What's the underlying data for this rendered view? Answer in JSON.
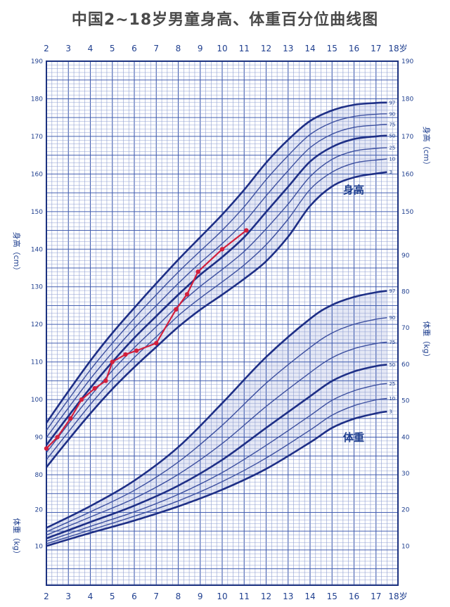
{
  "page": {
    "title": "中国2~18岁男童身高、体重百分位曲线图"
  },
  "chart_data": {
    "type": "line",
    "title": "中国2~18岁男童身高、体重百分位曲线图",
    "x_ticks": [
      "2",
      "3",
      "4",
      "5",
      "6",
      "7",
      "8",
      "9",
      "10",
      "11",
      "12",
      "13",
      "14",
      "15",
      "16",
      "17",
      "18岁"
    ],
    "xlim": [
      2,
      18
    ],
    "height_axis": {
      "label_left": "身高（cm）",
      "label_right": "身高（cm）",
      "range": [
        80,
        190
      ],
      "ticks": [
        80,
        90,
        100,
        110,
        120,
        130,
        140,
        150,
        160,
        170,
        180,
        190
      ],
      "right_ticks": [
        150,
        160,
        170,
        180,
        190
      ],
      "curve_label": "身高",
      "percentiles": [
        {
          "name": "3",
          "values": [
            [
              2,
              82.0
            ],
            [
              3,
              89.3
            ],
            [
              4,
              96.3
            ],
            [
              5,
              102.8
            ],
            [
              6,
              108.6
            ],
            [
              7,
              114.0
            ],
            [
              8,
              119.3
            ],
            [
              9,
              123.9
            ],
            [
              10,
              127.9
            ],
            [
              11,
              132.1
            ],
            [
              12,
              136.8
            ],
            [
              13,
              143.3
            ],
            [
              14,
              151.5
            ],
            [
              15,
              156.7
            ],
            [
              16,
              159.1
            ],
            [
              17,
              160.1
            ],
            [
              17.5,
              160.5
            ]
          ]
        },
        {
          "name": "10",
          "values": [
            [
              2,
              84.0
            ],
            [
              3,
              91.4
            ],
            [
              4,
              98.7
            ],
            [
              5,
              105.3
            ],
            [
              6,
              111.2
            ],
            [
              7,
              116.7
            ],
            [
              8,
              122.3
            ],
            [
              9,
              127.0
            ],
            [
              10,
              131.3
            ],
            [
              11,
              135.8
            ],
            [
              12,
              141.2
            ],
            [
              13,
              148.0
            ],
            [
              14,
              155.9
            ],
            [
              15,
              160.5
            ],
            [
              16,
              162.9
            ],
            [
              17,
              163.7
            ],
            [
              17.5,
              164.0
            ]
          ]
        },
        {
          "name": "25",
          "values": [
            [
              2,
              85.9
            ],
            [
              3,
              93.5
            ],
            [
              4,
              100.9
            ],
            [
              5,
              107.7
            ],
            [
              6,
              113.8
            ],
            [
              7,
              119.4
            ],
            [
              8,
              125.0
            ],
            [
              9,
              130.1
            ],
            [
              10,
              134.6
            ],
            [
              11,
              139.4
            ],
            [
              12,
              145.4
            ],
            [
              13,
              152.0
            ],
            [
              14,
              159.3
            ],
            [
              15,
              163.9
            ],
            [
              16,
              166.1
            ],
            [
              17,
              166.8
            ],
            [
              17.5,
              167.0
            ]
          ]
        },
        {
          "name": "50",
          "values": [
            [
              2,
              87.9
            ],
            [
              3,
              95.6
            ],
            [
              4,
              103.1
            ],
            [
              5,
              110.0
            ],
            [
              6,
              116.4
            ],
            [
              7,
              122.2
            ],
            [
              8,
              127.9
            ],
            [
              9,
              133.2
            ],
            [
              10,
              137.9
            ],
            [
              11,
              143.2
            ],
            [
              12,
              149.9
            ],
            [
              13,
              156.6
            ],
            [
              14,
              163.3
            ],
            [
              15,
              167.2
            ],
            [
              16,
              169.3
            ],
            [
              17,
              170.0
            ],
            [
              17.5,
              170.2
            ]
          ]
        },
        {
          "name": "75",
          "values": [
            [
              2,
              89.9
            ],
            [
              3,
              97.8
            ],
            [
              4,
              105.5
            ],
            [
              5,
              112.5
            ],
            [
              6,
              119.0
            ],
            [
              7,
              125.0
            ],
            [
              8,
              130.9
            ],
            [
              9,
              136.4
            ],
            [
              10,
              141.5
            ],
            [
              11,
              147.2
            ],
            [
              12,
              154.2
            ],
            [
              13,
              160.9
            ],
            [
              14,
              167.0
            ],
            [
              15,
              170.6
            ],
            [
              16,
              172.4
            ],
            [
              17,
              173.0
            ],
            [
              17.5,
              173.2
            ]
          ]
        },
        {
          "name": "90",
          "values": [
            [
              2,
              91.8
            ],
            [
              3,
              100.0
            ],
            [
              4,
              107.9
            ],
            [
              5,
              115.0
            ],
            [
              6,
              121.6
            ],
            [
              7,
              127.9
            ],
            [
              8,
              133.9
            ],
            [
              9,
              139.5
            ],
            [
              10,
              145.0
            ],
            [
              11,
              151.3
            ],
            [
              12,
              158.5
            ],
            [
              13,
              164.9
            ],
            [
              14,
              170.5
            ],
            [
              15,
              173.7
            ],
            [
              16,
              175.3
            ],
            [
              17,
              175.9
            ],
            [
              17.5,
              176.0
            ]
          ]
        },
        {
          "name": "97",
          "values": [
            [
              2,
              93.8
            ],
            [
              3,
              102.2
            ],
            [
              4,
              110.3
            ],
            [
              5,
              117.7
            ],
            [
              6,
              124.4
            ],
            [
              7,
              130.9
            ],
            [
              8,
              137.2
            ],
            [
              9,
              143.2
            ],
            [
              10,
              149.2
            ],
            [
              11,
              155.8
            ],
            [
              12,
              163.0
            ],
            [
              13,
              169.1
            ],
            [
              14,
              174.1
            ],
            [
              15,
              176.9
            ],
            [
              16,
              178.4
            ],
            [
              17,
              178.9
            ],
            [
              17.5,
              179.0
            ]
          ]
        }
      ]
    },
    "weight_axis": {
      "label_left": "体重（kg）",
      "label_right": "体重（kg）",
      "range": [
        5,
        95
      ],
      "ticks": [
        10,
        20,
        30,
        40,
        50,
        60,
        70,
        80,
        90
      ],
      "left_ticks": [
        10,
        20
      ],
      "left_ticks_upper": [
        80,
        90,
        100
      ],
      "curve_label": "体重",
      "percentiles": [
        {
          "name": "3",
          "values": [
            [
              2,
              10.0
            ],
            [
              4,
              13.6
            ],
            [
              6,
              17.0
            ],
            [
              8,
              20.9
            ],
            [
              10,
              25.5
            ],
            [
              12,
              31.2
            ],
            [
              14,
              38.5
            ],
            [
              15,
              42.5
            ],
            [
              16,
              45.0
            ],
            [
              17,
              46.5
            ],
            [
              17.5,
              47.0
            ]
          ]
        },
        {
          "name": "10",
          "values": [
            [
              2,
              10.6
            ],
            [
              4,
              14.4
            ],
            [
              6,
              18.2
            ],
            [
              8,
              22.4
            ],
            [
              10,
              27.7
            ],
            [
              12,
              34.2
            ],
            [
              14,
              41.9
            ],
            [
              15,
              46.0
            ],
            [
              16,
              48.6
            ],
            [
              17,
              50.2
            ],
            [
              17.5,
              50.6
            ]
          ]
        },
        {
          "name": "25",
          "values": [
            [
              2,
              11.3
            ],
            [
              4,
              15.4
            ],
            [
              6,
              19.4
            ],
            [
              8,
              24.2
            ],
            [
              10,
              30.2
            ],
            [
              12,
              37.7
            ],
            [
              14,
              45.9
            ],
            [
              15,
              50.1
            ],
            [
              16,
              52.7
            ],
            [
              17,
              54.3
            ],
            [
              17.5,
              54.7
            ]
          ]
        },
        {
          "name": "50",
          "values": [
            [
              2,
              12.1
            ],
            [
              4,
              16.6
            ],
            [
              6,
              21.1
            ],
            [
              8,
              26.6
            ],
            [
              10,
              33.7
            ],
            [
              12,
              42.5
            ],
            [
              14,
              51.2
            ],
            [
              15,
              55.4
            ],
            [
              16,
              58.0
            ],
            [
              17,
              59.5
            ],
            [
              17.5,
              59.9
            ]
          ]
        },
        {
          "name": "75",
          "values": [
            [
              2,
              13.0
            ],
            [
              4,
              18.0
            ],
            [
              6,
              23.1
            ],
            [
              8,
              29.7
            ],
            [
              10,
              38.2
            ],
            [
              12,
              48.4
            ],
            [
              14,
              57.7
            ],
            [
              15,
              61.8
            ],
            [
              16,
              64.3
            ],
            [
              17,
              65.7
            ],
            [
              17.5,
              66.1
            ]
          ]
        },
        {
          "name": "90",
          "values": [
            [
              2,
              13.9
            ],
            [
              4,
              19.4
            ],
            [
              6,
              25.3
            ],
            [
              8,
              33.1
            ],
            [
              10,
              43.2
            ],
            [
              12,
              54.8
            ],
            [
              14,
              64.6
            ],
            [
              15,
              68.6
            ],
            [
              16,
              71.0
            ],
            [
              17,
              72.4
            ],
            [
              17.5,
              72.8
            ]
          ]
        },
        {
          "name": "97",
          "values": [
            [
              2,
              15.0
            ],
            [
              4,
              21.0
            ],
            [
              6,
              28.0
            ],
            [
              8,
              37.2
            ],
            [
              10,
              49.3
            ],
            [
              12,
              62.0
            ],
            [
              14,
              72.5
            ],
            [
              15,
              76.3
            ],
            [
              16,
              78.5
            ],
            [
              17,
              79.8
            ],
            [
              17.5,
              80.2
            ]
          ]
        }
      ]
    },
    "measurements": {
      "series": "height",
      "color": "#d21f3c",
      "values": [
        [
          2.0,
          87
        ],
        [
          2.5,
          90
        ],
        [
          3.1,
          95
        ],
        [
          3.6,
          100
        ],
        [
          4.2,
          103
        ],
        [
          4.7,
          105
        ],
        [
          5.0,
          110
        ],
        [
          5.6,
          112
        ],
        [
          6.1,
          113
        ],
        [
          7.0,
          115
        ],
        [
          7.9,
          124
        ],
        [
          8.4,
          128
        ],
        [
          8.9,
          134
        ],
        [
          10.0,
          140
        ],
        [
          11.1,
          145
        ]
      ]
    },
    "colors": {
      "grid_minor": "#8f9fd1",
      "grid_major": "#445fb0",
      "frame": "#1c3280",
      "curve": "#3c4f9f",
      "curve_bold": "#1e2f86",
      "band": "#6f82c7"
    },
    "grid": true
  }
}
